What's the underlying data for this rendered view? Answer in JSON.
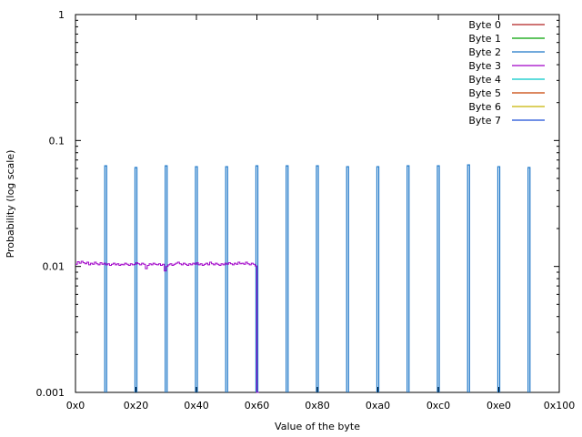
{
  "chart_data": {
    "type": "line",
    "xlabel": "Value of the byte",
    "ylabel": "Probability (log scale)",
    "y_scale": "log",
    "xlim": [
      0,
      256
    ],
    "ylim": [
      0.001,
      1
    ],
    "x_ticks": [
      {
        "value": 0,
        "label": "0x0"
      },
      {
        "value": 32,
        "label": "0x20"
      },
      {
        "value": 64,
        "label": "0x40"
      },
      {
        "value": 96,
        "label": "0x60"
      },
      {
        "value": 128,
        "label": "0x80"
      },
      {
        "value": 160,
        "label": "0xa0"
      },
      {
        "value": 192,
        "label": "0xc0"
      },
      {
        "value": 224,
        "label": "0xe0"
      },
      {
        "value": 256,
        "label": "0x100"
      }
    ],
    "y_ticks": [
      {
        "value": 0.001,
        "label": "0.001"
      },
      {
        "value": 0.01,
        "label": "0.01"
      },
      {
        "value": 0.1,
        "label": "0.1"
      },
      {
        "value": 1,
        "label": "1"
      }
    ],
    "legend_position": "top-right",
    "series": [
      {
        "name": "Byte 0",
        "color": "#b22222",
        "points": []
      },
      {
        "name": "Byte 1",
        "color": "#00a000",
        "points": []
      },
      {
        "name": "Byte 2",
        "color": "#1f78c8",
        "style": "spikes",
        "points": [
          {
            "x": 16,
            "y": 0.063
          },
          {
            "x": 32,
            "y": 0.061
          },
          {
            "x": 48,
            "y": 0.063
          },
          {
            "x": 64,
            "y": 0.062
          },
          {
            "x": 80,
            "y": 0.062
          },
          {
            "x": 96,
            "y": 0.063
          },
          {
            "x": 112,
            "y": 0.063
          },
          {
            "x": 128,
            "y": 0.063
          },
          {
            "x": 144,
            "y": 0.062
          },
          {
            "x": 160,
            "y": 0.062
          },
          {
            "x": 176,
            "y": 0.063
          },
          {
            "x": 192,
            "y": 0.063
          },
          {
            "x": 208,
            "y": 0.064
          },
          {
            "x": 224,
            "y": 0.062
          },
          {
            "x": 240,
            "y": 0.061
          }
        ]
      },
      {
        "name": "Byte 3",
        "color": "#a000c8",
        "style": "step",
        "x": [
          0,
          1,
          2,
          3,
          4,
          5,
          6,
          7,
          8,
          9,
          10,
          11,
          12,
          13,
          14,
          15,
          16,
          17,
          18,
          19,
          20,
          21,
          22,
          23,
          24,
          25,
          26,
          27,
          28,
          29,
          30,
          31,
          32,
          33,
          34,
          35,
          36,
          37,
          38,
          39,
          40,
          41,
          42,
          43,
          44,
          45,
          46,
          47,
          48,
          49,
          50,
          51,
          52,
          53,
          54,
          55,
          56,
          57,
          58,
          59,
          60,
          61,
          62,
          63,
          64,
          65,
          66,
          67,
          68,
          69,
          70,
          71,
          72,
          73,
          74,
          75,
          76,
          77,
          78,
          79,
          80,
          81,
          82,
          83,
          84,
          85,
          86,
          87,
          88,
          89,
          90,
          91,
          92,
          93,
          94,
          95,
          96
        ],
        "y": [
          0.0104,
          0.0109,
          0.0106,
          0.011,
          0.0107,
          0.0105,
          0.0108,
          0.0103,
          0.0106,
          0.0104,
          0.0108,
          0.0105,
          0.0103,
          0.0107,
          0.0104,
          0.0106,
          0.0103,
          0.0105,
          0.0102,
          0.0104,
          0.0106,
          0.0103,
          0.0105,
          0.0102,
          0.0104,
          0.0103,
          0.0106,
          0.0104,
          0.0102,
          0.0105,
          0.0103,
          0.0104,
          0.0107,
          0.0105,
          0.0103,
          0.0106,
          0.0104,
          0.0096,
          0.0102,
          0.0105,
          0.0103,
          0.0106,
          0.0104,
          0.0103,
          0.0105,
          0.0102,
          0.0104,
          0.0092,
          0.01,
          0.0103,
          0.0105,
          0.0102,
          0.0104,
          0.0106,
          0.0108,
          0.0105,
          0.0103,
          0.0106,
          0.0104,
          0.0102,
          0.0105,
          0.0103,
          0.0106,
          0.0104,
          0.0107,
          0.0103,
          0.0105,
          0.0102,
          0.0104,
          0.0106,
          0.0103,
          0.0108,
          0.0105,
          0.0103,
          0.0106,
          0.0104,
          0.0102,
          0.0105,
          0.0103,
          0.0106,
          0.0104,
          0.0107,
          0.0105,
          0.0103,
          0.0106,
          0.0104,
          0.0108,
          0.0105,
          0.0106,
          0.0104,
          0.0108,
          0.0105,
          0.0103,
          0.0106,
          0.0104,
          0.0101,
          0.001
        ]
      },
      {
        "name": "Byte 4",
        "color": "#00c8c8",
        "points": []
      },
      {
        "name": "Byte 5",
        "color": "#c84000",
        "points": []
      },
      {
        "name": "Byte 6",
        "color": "#c8b400",
        "points": []
      },
      {
        "name": "Byte 7",
        "color": "#1a4ed8",
        "points": []
      }
    ]
  }
}
